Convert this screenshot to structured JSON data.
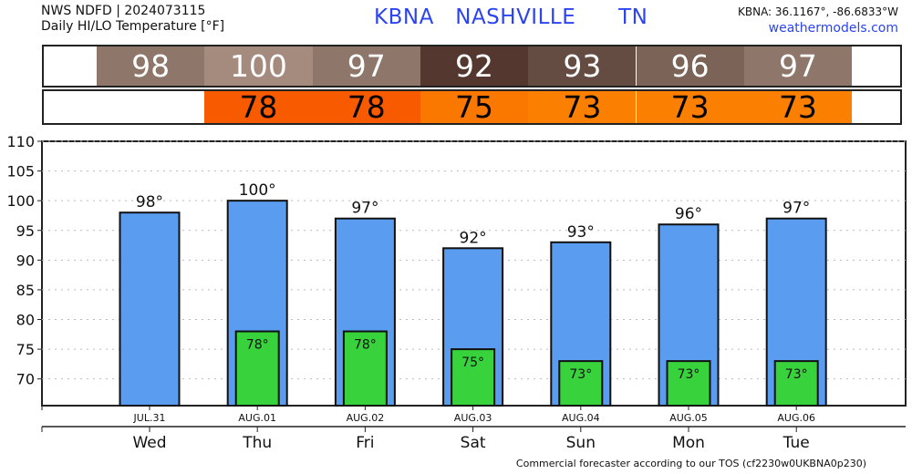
{
  "header": {
    "line1": "NWS NDFD | 2024073115",
    "line2": "Daily HI/LO Temperature [°F]",
    "station": "KBNA   NASHVILLE      TN",
    "coords": "KBNA: 36.1167°, -86.6833°W",
    "site": "weathermodels.com"
  },
  "hi_strip": [
    {
      "value": "98",
      "color": "#8e776a"
    },
    {
      "value": "100",
      "color": "#a48b7e"
    },
    {
      "value": "97",
      "color": "#8e776a"
    },
    {
      "value": "92",
      "color": "#54382f"
    },
    {
      "value": "93",
      "color": "#654c42"
    },
    {
      "value": "96",
      "color": "#7b6358"
    },
    {
      "value": "97",
      "color": "#8e776a"
    }
  ],
  "lo_strip": [
    {
      "value": "78",
      "color": "#f85a00"
    },
    {
      "value": "78",
      "color": "#f85a00"
    },
    {
      "value": "75",
      "color": "#fb7800"
    },
    {
      "value": "73",
      "color": "#fb7f00"
    },
    {
      "value": "73",
      "color": "#fb7f00"
    },
    {
      "value": "73",
      "color": "#fb7f00"
    }
  ],
  "chart_data": {
    "type": "bar",
    "title": "Daily HI/LO Temperature [°F]",
    "categories": [
      "Wed",
      "Thu",
      "Fri",
      "Sat",
      "Sun",
      "Mon",
      "Tue"
    ],
    "dates": [
      "JUL.31",
      "AUG.01",
      "AUG.02",
      "AUG.03",
      "AUG.04",
      "AUG.05",
      "AUG.06"
    ],
    "series": [
      {
        "name": "High",
        "color": "#5a9cf0",
        "values": [
          98,
          100,
          97,
          92,
          93,
          96,
          97
        ],
        "labels": [
          "98°",
          "100°",
          "97°",
          "92°",
          "93°",
          "96°",
          "97°"
        ]
      },
      {
        "name": "Low",
        "color": "#38d23c",
        "values": [
          null,
          78,
          78,
          75,
          73,
          73,
          73
        ],
        "labels": [
          "",
          "78°",
          "78°",
          "75°",
          "73°",
          "73°",
          "73°"
        ]
      }
    ],
    "yticks": [
      "70",
      "75",
      "80",
      "85",
      "90",
      "95",
      "100",
      "105",
      "110"
    ],
    "ylim": [
      65.5,
      110
    ],
    "grid": true
  },
  "footer": "Commercial forecaster according to our TOS (cf2230w0UKBNA0p230)"
}
